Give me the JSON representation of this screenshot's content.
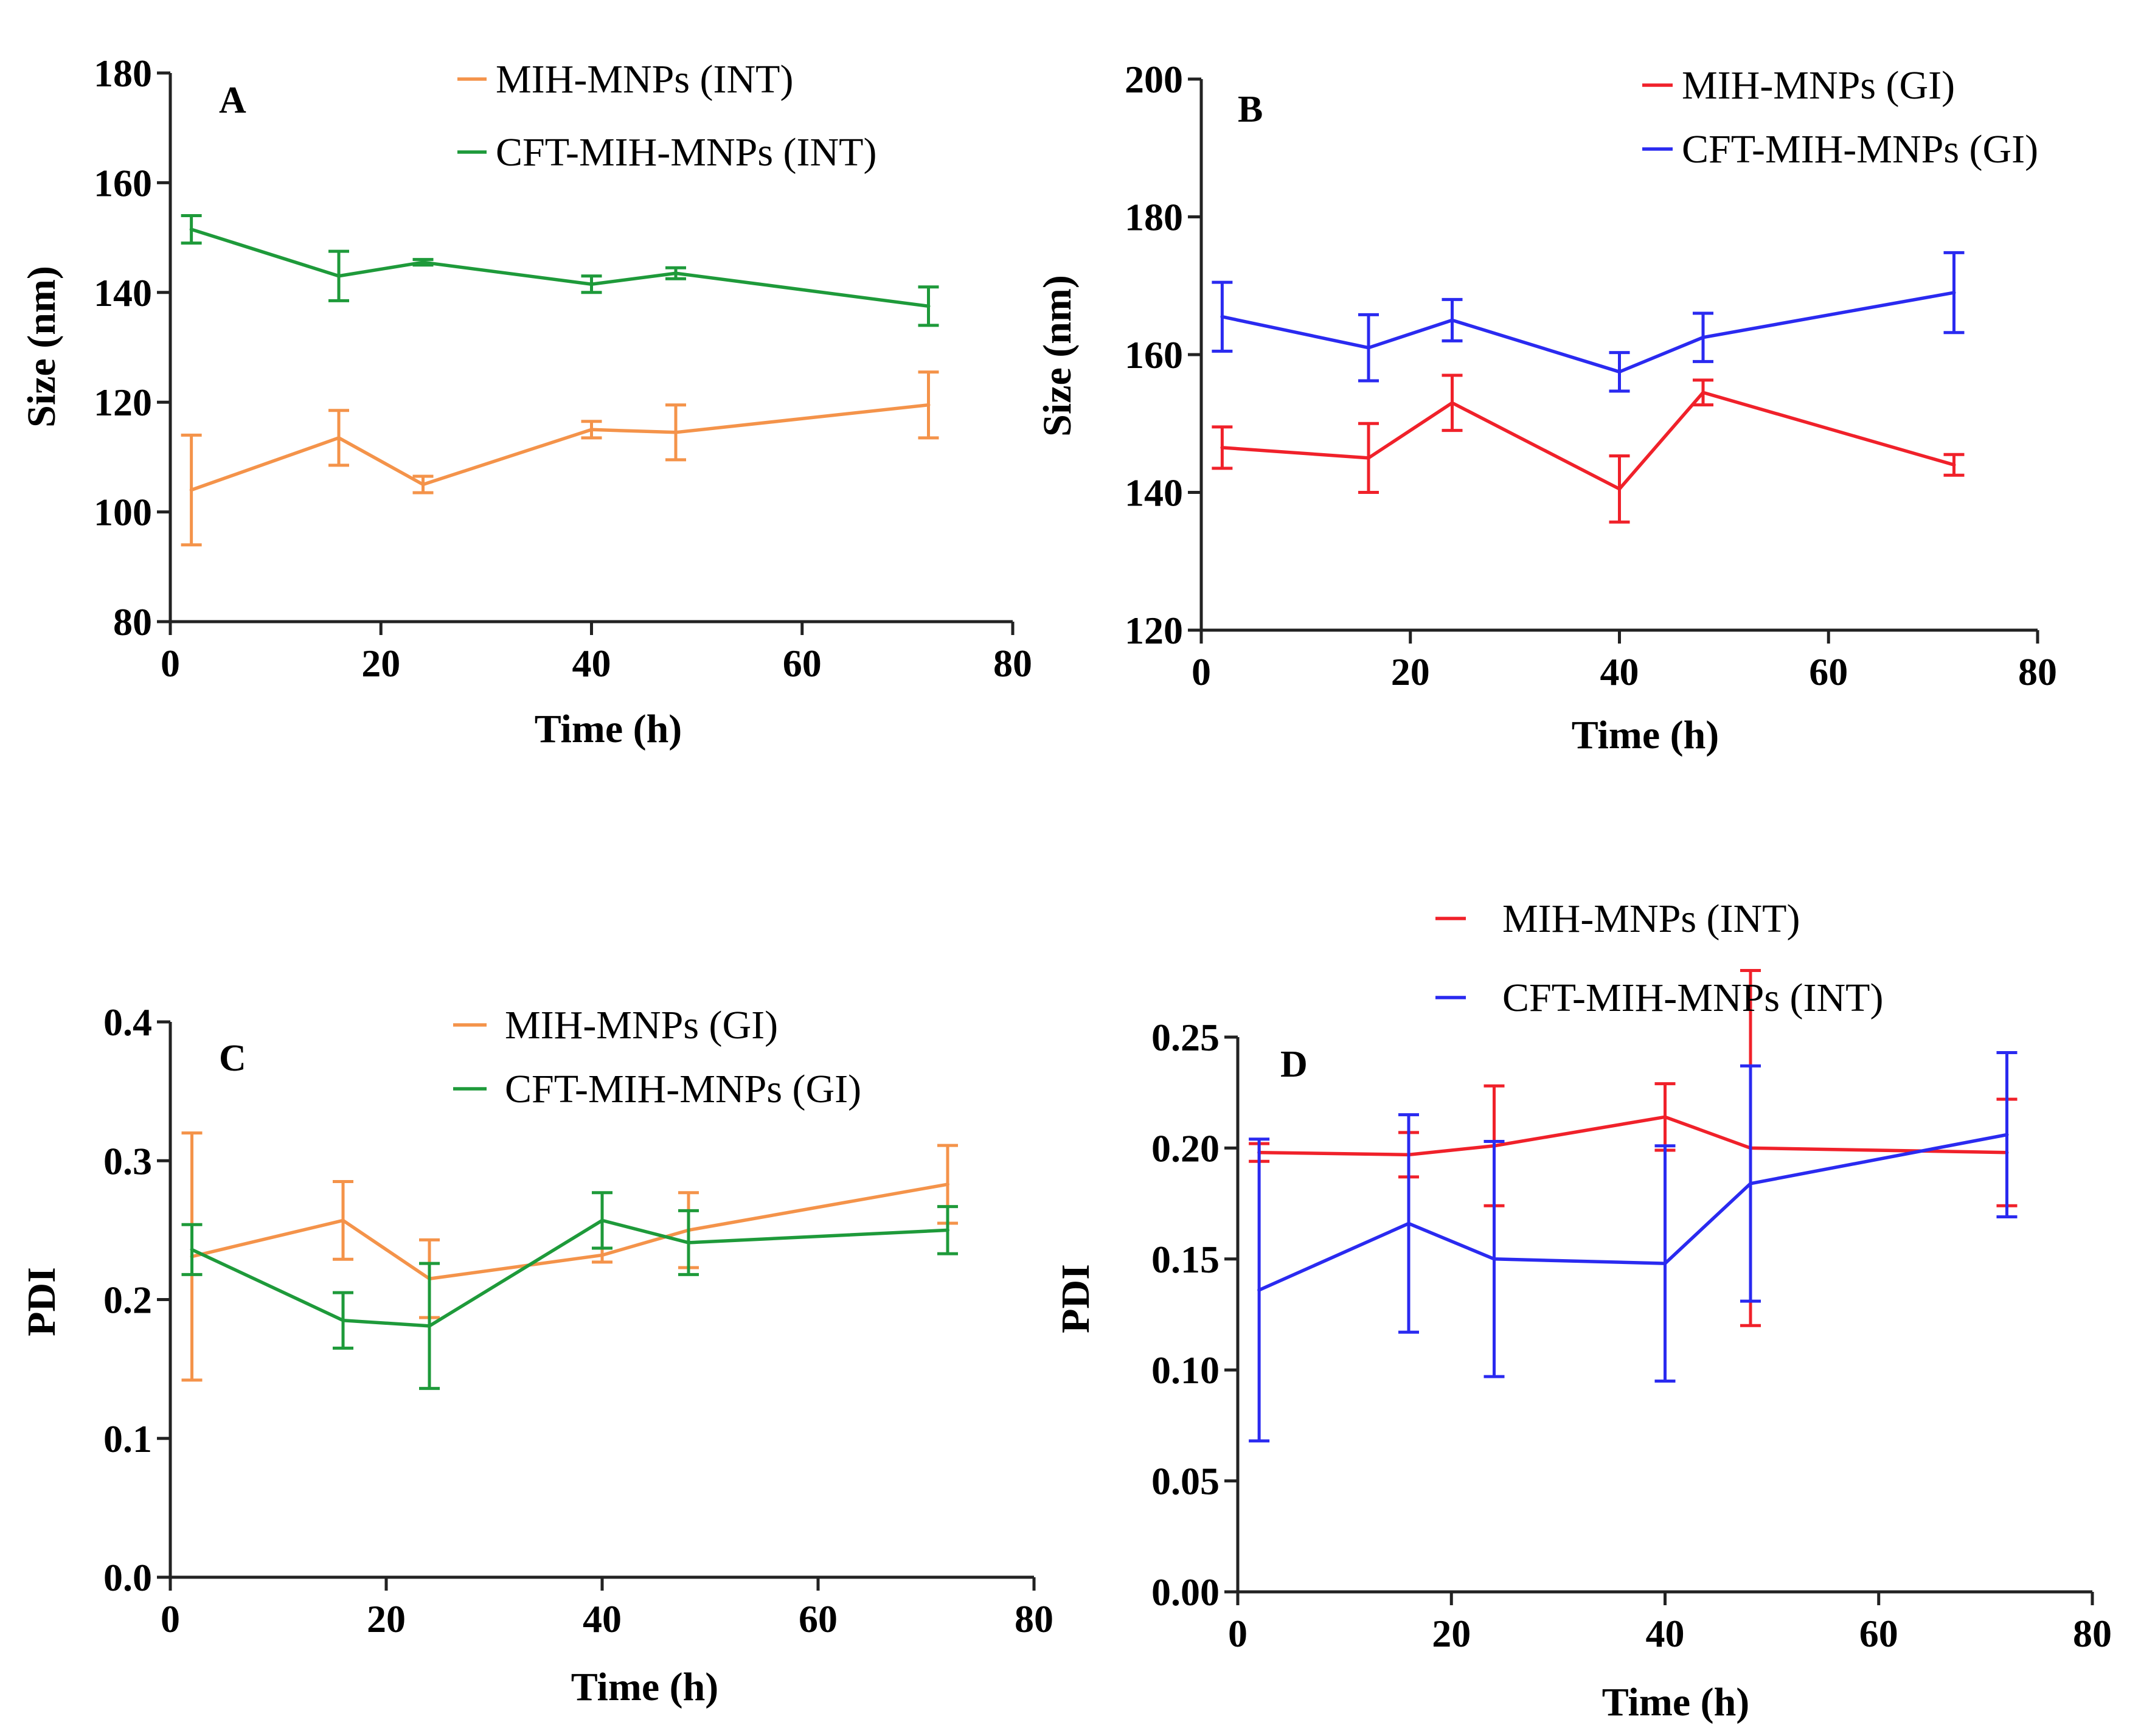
{
  "chart_data": [
    {
      "type": "line",
      "panel": "A",
      "xlabel": "Time (h)",
      "ylabel": "Size (nm)",
      "xlim": [
        0,
        80
      ],
      "ylim": [
        80,
        180
      ],
      "xticks": [
        0,
        20,
        40,
        60,
        80
      ],
      "yticks": [
        80,
        100,
        120,
        140,
        160,
        180
      ],
      "ytick_labels": [
        "80",
        "100",
        "120",
        "140",
        "160",
        "180"
      ],
      "legend_position": "top-right",
      "series": [
        {
          "name": "MIH-MNPs (INT)",
          "color": "#f4934a",
          "x": [
            2,
            16,
            24,
            40,
            48,
            72
          ],
          "values": [
            104,
            113.5,
            105,
            115,
            114.5,
            119.5
          ],
          "errors": [
            10,
            5,
            1.5,
            1.5,
            5,
            6
          ]
        },
        {
          "name": "CFT-MIH-MNPs (INT)",
          "color": "#1e9a3a",
          "x": [
            2,
            16,
            24,
            40,
            48,
            72
          ],
          "values": [
            151.5,
            143,
            145.5,
            141.5,
            143.5,
            137.5
          ],
          "errors": [
            2.5,
            4.5,
            0.5,
            1.5,
            1,
            3.5
          ]
        }
      ]
    },
    {
      "type": "line",
      "panel": "B",
      "xlabel": "Time (h)",
      "ylabel": "Size (nm)",
      "xlim": [
        0,
        80
      ],
      "ylim": [
        120,
        200
      ],
      "xticks": [
        0,
        20,
        40,
        60,
        80
      ],
      "yticks": [
        120,
        140,
        160,
        180,
        200
      ],
      "ytick_labels": [
        "120",
        "140",
        "160",
        "180",
        "200"
      ],
      "legend_position": "top-right",
      "series": [
        {
          "name": "MIH-MNPs (GI)",
          "color": "#f0212a",
          "x": [
            2,
            16,
            24,
            40,
            48,
            72
          ],
          "values": [
            146.5,
            145,
            153,
            140.5,
            154.5,
            144
          ],
          "errors": [
            3,
            5,
            4,
            4.8,
            1.8,
            1.5
          ]
        },
        {
          "name": "CFT-MIH-MNPs (GI)",
          "color": "#2a2af0",
          "x": [
            2,
            16,
            24,
            40,
            48,
            72
          ],
          "values": [
            165.5,
            161,
            165,
            157.5,
            162.5,
            169
          ],
          "errors": [
            5,
            4.8,
            3,
            2.8,
            3.5,
            5.8
          ]
        }
      ]
    },
    {
      "type": "line",
      "panel": "C",
      "xlabel": "Time (h)",
      "ylabel": "PDI",
      "xlim": [
        0,
        80
      ],
      "ylim": [
        0,
        0.4
      ],
      "xticks": [
        0,
        20,
        40,
        60,
        80
      ],
      "yticks": [
        0,
        0.1,
        0.2,
        0.3,
        0.4
      ],
      "ytick_labels": [
        "0.0",
        "0.1",
        "0.2",
        "0.3",
        "0.4"
      ],
      "legend_position": "top-right",
      "series": [
        {
          "name": "MIH-MNPs (GI)",
          "color": "#f4934a",
          "x": [
            2,
            16,
            24,
            40,
            48,
            72
          ],
          "values": [
            0.231,
            0.257,
            0.215,
            0.232,
            0.25,
            0.283
          ],
          "errors": [
            0.089,
            0.028,
            0.028,
            0.005,
            0.027,
            0.028
          ]
        },
        {
          "name": "CFT-MIH-MNPs (GI)",
          "color": "#1e9a3a",
          "x": [
            2,
            16,
            24,
            40,
            48,
            72
          ],
          "values": [
            0.236,
            0.185,
            0.181,
            0.257,
            0.241,
            0.25
          ],
          "errors": [
            0.018,
            0.02,
            0.045,
            0.02,
            0.023,
            0.017
          ]
        }
      ]
    },
    {
      "type": "line",
      "panel": "D",
      "xlabel": "Time (h)",
      "ylabel": "PDI",
      "xlim": [
        0,
        80
      ],
      "ylim": [
        0,
        0.25
      ],
      "xticks": [
        0,
        20,
        40,
        60,
        80
      ],
      "yticks": [
        0,
        0.05,
        0.1,
        0.15,
        0.2,
        0.25
      ],
      "ytick_labels": [
        "0.00",
        "0.05",
        "0.10",
        "0.15",
        "0.20",
        "0.25"
      ],
      "legend_position": "above-top-right",
      "series": [
        {
          "name": "MIH-MNPs (INT)",
          "color": "#f0212a",
          "x": [
            2,
            16,
            24,
            40,
            48,
            72
          ],
          "values": [
            0.198,
            0.197,
            0.201,
            0.214,
            0.2,
            0.198
          ],
          "errors": [
            0.004,
            0.01,
            0.027,
            0.015,
            0.08,
            0.024
          ]
        },
        {
          "name": "CFT-MIH-MNPs (INT)",
          "color": "#2a2af0",
          "x": [
            2,
            16,
            24,
            40,
            48,
            72
          ],
          "values": [
            0.136,
            0.166,
            0.15,
            0.148,
            0.184,
            0.206
          ],
          "errors": [
            0.068,
            0.049,
            0.053,
            0.053,
            0.053,
            0.037
          ]
        }
      ]
    }
  ]
}
